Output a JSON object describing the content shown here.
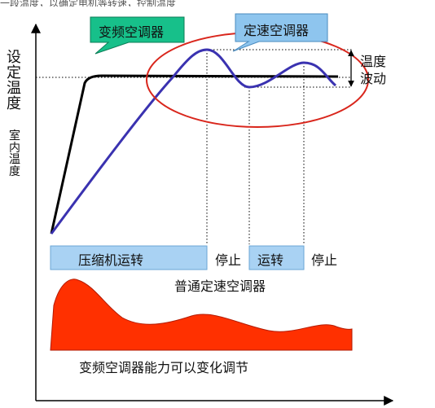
{
  "top_strip": "一段温度，以确定电机等转速，控制温度",
  "y_axis_labels": {
    "set_temp": "设定温度",
    "room_temp": "室内温度"
  },
  "callouts": {
    "inverter": "变频空调器",
    "fixed": "定速空调器"
  },
  "fluctuation_label": [
    "温度",
    "波动"
  ],
  "timeline": {
    "compressor_run": "压缩机运转",
    "stop_1": "停止",
    "run": "运转",
    "stop_2": "停止",
    "caption": "普通定速空调器"
  },
  "capacity_caption": "变频空调器能力可以变化调节",
  "colors": {
    "inverter_curve": "#000000",
    "fixed_curve": "#3a32b0",
    "callout_green": "#17c08a",
    "callout_blue": "#8ec5ee",
    "timeline_bar": "#a9d2f3",
    "capacity_fill": "#ff3000",
    "ellipse": "#d9261c"
  }
}
